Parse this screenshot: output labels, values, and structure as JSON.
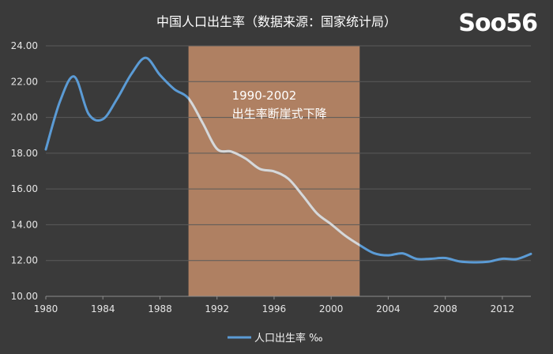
{
  "chart_data": {
    "type": "line",
    "title": "中国人口出生率（数据来源：国家统计局）",
    "watermark": "Soo56",
    "xlabel": "",
    "ylabel": "",
    "xlim": [
      1980,
      2014
    ],
    "ylim": [
      10,
      24
    ],
    "y_ticks": [
      "10.00",
      "12.00",
      "14.00",
      "16.00",
      "18.00",
      "20.00",
      "22.00",
      "24.00"
    ],
    "x_ticks": [
      "1980",
      "1984",
      "1988",
      "1992",
      "1996",
      "2000",
      "2004",
      "2008",
      "2012"
    ],
    "grid": "horizontal",
    "legend_position": "bottom",
    "series": [
      {
        "name": "人口出生率 ‰",
        "color": "#5b9bd5",
        "x": [
          1980,
          1981,
          1982,
          1983,
          1984,
          1985,
          1986,
          1987,
          1988,
          1989,
          1990,
          1991,
          1992,
          1993,
          1994,
          1995,
          1996,
          1997,
          1998,
          1999,
          2000,
          2001,
          2002,
          2003,
          2004,
          2005,
          2006,
          2007,
          2008,
          2009,
          2010,
          2011,
          2012,
          2013,
          2014
        ],
        "values": [
          18.21,
          20.91,
          22.28,
          20.19,
          19.9,
          21.04,
          22.43,
          23.33,
          22.37,
          21.58,
          21.06,
          19.68,
          18.24,
          18.09,
          17.7,
          17.12,
          16.98,
          16.57,
          15.64,
          14.64,
          14.03,
          13.38,
          12.86,
          12.41,
          12.29,
          12.4,
          12.09,
          12.1,
          12.14,
          11.95,
          11.9,
          11.93,
          12.1,
          12.08,
          12.37
        ]
      }
    ],
    "highlight": {
      "range": [
        1990,
        2002
      ],
      "color": "#c9906b",
      "label_line1": "1990-2002",
      "label_line2": "出生率断崖式下降"
    }
  }
}
